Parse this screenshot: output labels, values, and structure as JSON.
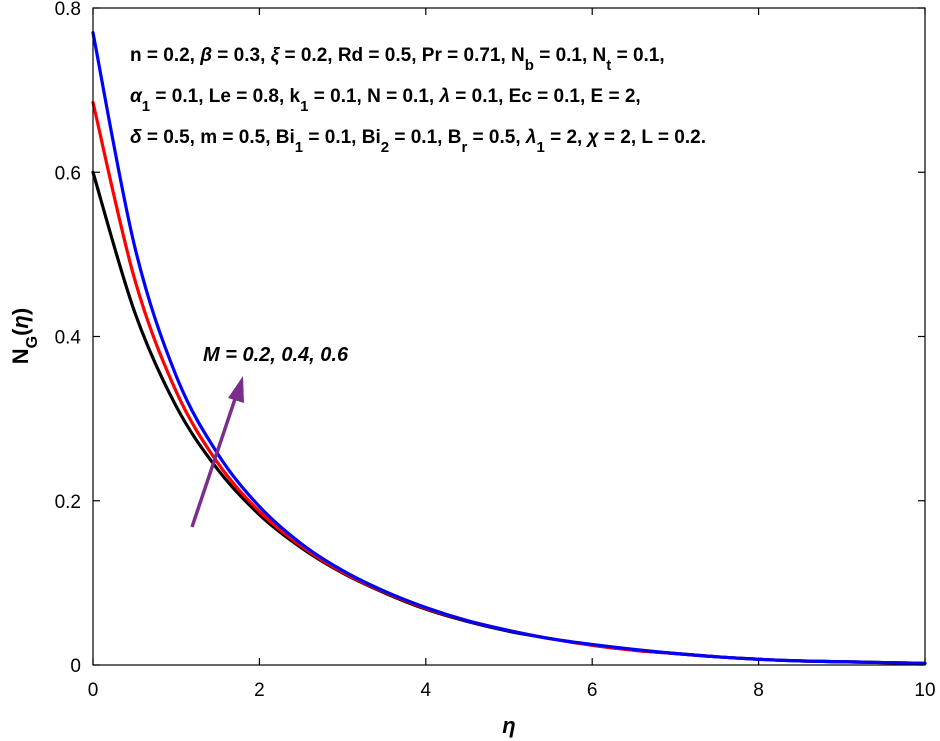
{
  "chart_data": {
    "type": "line",
    "xlabel": "η",
    "ylabel": "N_G(η)",
    "xlim": [
      0,
      10
    ],
    "ylim": [
      0,
      0.8
    ],
    "xticks": [
      0,
      2,
      4,
      6,
      8,
      10
    ],
    "yticks": [
      0,
      0.2,
      0.4,
      0.6,
      0.8
    ],
    "xtick_labels": [
      "0",
      "2",
      "4",
      "6",
      "8",
      "10"
    ],
    "ytick_labels": [
      "0",
      "0.2",
      "0.4",
      "0.6",
      "0.8"
    ],
    "grid": false,
    "parameters": [
      "n = 0.2, β = 0.3, ξ = 0.2, Rd = 0.5, Pr = 0.71, N_b = 0.1, N_t = 0.1,",
      "α_1 = 0.1, Le = 0.8, k_1 = 0.1, N = 0.1, λ = 0.1, Ec = 0.1, E = 2,",
      "δ = 0.5, m = 0.5, Bi_1 = 0.1, Bi_2 = 0.1, B_r = 0.5, λ_1 = 2, χ = 2, L = 0.2."
    ],
    "annotation": "M = 0.2, 0.4, 0.6",
    "arrow_color": "#7B2D8E",
    "x": [
      0,
      0.5,
      1,
      1.5,
      2,
      2.5,
      3,
      3.5,
      4,
      4.5,
      5,
      5.5,
      6,
      6.5,
      7,
      7.5,
      8,
      8.5,
      9,
      9.5,
      10
    ],
    "series": [
      {
        "color": "#000000",
        "values": [
          0.6,
          0.43,
          0.315,
          0.238,
          0.183,
          0.143,
          0.112,
          0.088,
          0.068,
          0.053,
          0.041,
          0.032,
          0.024,
          0.018,
          0.014,
          0.01,
          0.007,
          0.005,
          0.004,
          0.003,
          0.002
        ]
      },
      {
        "color": "#ff0000",
        "values": [
          0.685,
          0.47,
          0.333,
          0.246,
          0.187,
          0.145,
          0.113,
          0.089,
          0.069,
          0.054,
          0.042,
          0.032,
          0.024,
          0.018,
          0.014,
          0.01,
          0.007,
          0.005,
          0.004,
          0.003,
          0.002
        ]
      },
      {
        "color": "#0000ff",
        "values": [
          0.77,
          0.51,
          0.352,
          0.257,
          0.193,
          0.148,
          0.115,
          0.09,
          0.07,
          0.054,
          0.042,
          0.032,
          0.025,
          0.019,
          0.014,
          0.01,
          0.007,
          0.005,
          0.004,
          0.003,
          0.002
        ]
      }
    ]
  }
}
